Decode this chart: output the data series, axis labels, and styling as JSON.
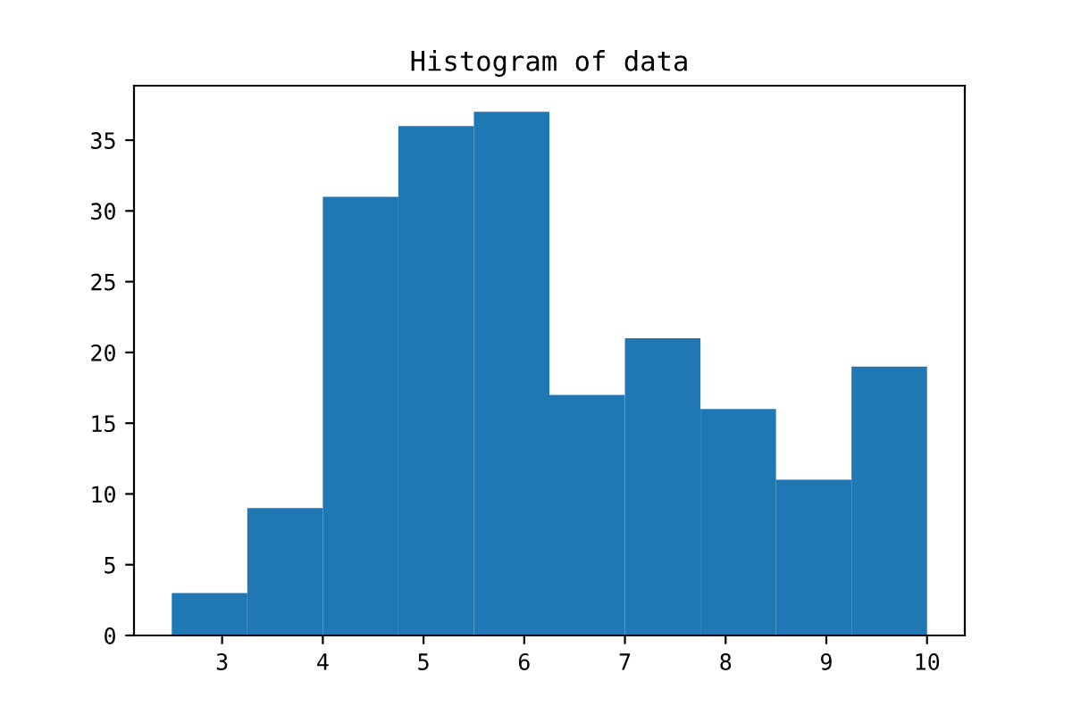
{
  "chart_data": {
    "type": "histogram",
    "title": "Histogram of data",
    "bins": [
      2.5,
      3.25,
      4.0,
      4.75,
      5.5,
      6.25,
      7.0,
      7.75,
      8.5,
      9.25,
      10.0
    ],
    "values": [
      3,
      9,
      31,
      36,
      37,
      17,
      21,
      16,
      11,
      19
    ],
    "color": "#1f77b4",
    "xlim": [
      2.125,
      10.375
    ],
    "xticks": [
      3,
      4,
      5,
      6,
      7,
      8,
      9,
      10
    ],
    "ylim": [
      0,
      38.85
    ],
    "yticks": [
      0,
      5,
      10,
      15,
      20,
      25,
      30,
      35
    ],
    "grid": false
  }
}
